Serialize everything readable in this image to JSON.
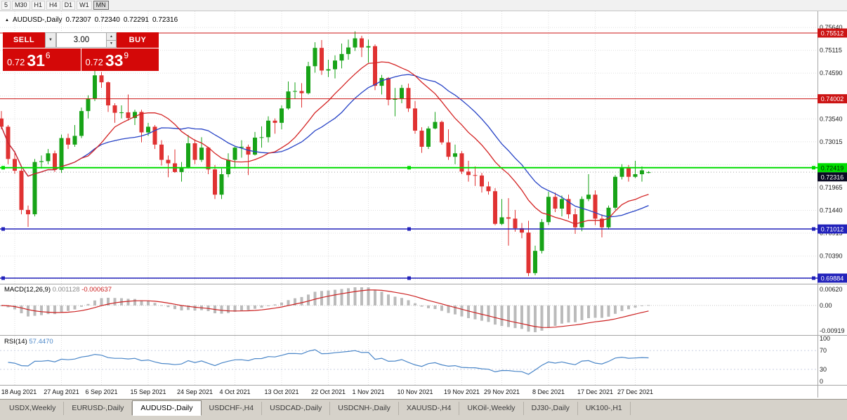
{
  "toolbar": {
    "timeframes": [
      {
        "label": "5",
        "active": false
      },
      {
        "label": "M30",
        "active": false
      },
      {
        "label": "H1",
        "active": false
      },
      {
        "label": "H4",
        "active": false
      },
      {
        "label": "D1",
        "active": false
      },
      {
        "label": "W1",
        "active": false
      },
      {
        "label": "MN",
        "active": true
      }
    ]
  },
  "chart_header": {
    "collapse_icon": "▲",
    "symbol": "AUDUSD-,Daily",
    "open": "0.72307",
    "high": "0.72340",
    "low": "0.72291",
    "close": "0.72316"
  },
  "trade_panel": {
    "sell_label": "SELL",
    "buy_label": "BUY",
    "volume": "3.00",
    "sell_price_prefix": "0.72",
    "sell_price_big": "31",
    "sell_price_sup": "6",
    "buy_price_prefix": "0.72",
    "buy_price_big": "33",
    "buy_price_sup": "9"
  },
  "price_axis": {
    "labels": [
      "0.75640",
      "0.75115",
      "0.74590",
      "0.73540",
      "0.73015",
      "0.71965",
      "0.71440",
      "0.70915",
      "0.70390"
    ],
    "grid_prices": [
      0.7564,
      0.75115,
      0.7459,
      0.74065,
      0.7354,
      0.73015,
      0.7249,
      0.71965,
      0.7144,
      0.70915,
      0.7039,
      0.69865
    ],
    "badges": [
      {
        "text": "0.75512",
        "price": 0.75512,
        "bg": "#cc1414",
        "fg": "#ffffff"
      },
      {
        "text": "0.74002",
        "price": 0.74002,
        "bg": "#cc1414",
        "fg": "#ffffff"
      },
      {
        "text": "0.72419",
        "price": 0.72419,
        "bg": "#00dd00",
        "fg": "#002200"
      },
      {
        "text": "0.72316",
        "price": 0.72316,
        "bg": "#0a0a23",
        "fg": "#ffffff"
      },
      {
        "text": "0.71012",
        "price": 0.71012,
        "bg": "#2222bb",
        "fg": "#ffffff"
      },
      {
        "text": "0.69884",
        "price": 0.69884,
        "bg": "#2222bb",
        "fg": "#ffffff"
      }
    ]
  },
  "hlines": [
    {
      "price": 0.75512,
      "color": "#cc1414",
      "width": 1,
      "handles": false
    },
    {
      "price": 0.74002,
      "color": "#cc1414",
      "width": 1,
      "handles": false
    },
    {
      "price": 0.72419,
      "color": "#00dd00",
      "width": 2,
      "handles": true
    },
    {
      "price": 0.71012,
      "color": "#2222bb",
      "width": 1.5,
      "handles": true
    },
    {
      "price": 0.69884,
      "color": "#2222bb",
      "width": 1.5,
      "handles": true
    }
  ],
  "bid_line": {
    "price": 0.72316,
    "color": "#a8a8a8"
  },
  "macd_panel": {
    "title": "MACD(12,26,9)",
    "main_value": "0.001128",
    "signal_value": "-0.000637",
    "axis_labels": [
      "0.00620",
      "0.00",
      "-0.00919"
    ],
    "histogram_color": "#bbbbbb",
    "signal_color": "#cc2020"
  },
  "rsi_panel": {
    "title": "RSI(14)",
    "value": "57.4470",
    "axis_labels": [
      "100",
      "70",
      "30",
      "0"
    ],
    "levels": [
      70,
      30
    ],
    "line_color": "#4a86c8"
  },
  "chart_data": {
    "type": "candlestick",
    "symbol": "AUDUSD-,Daily",
    "up_color": "#17a317",
    "down_color": "#e03232",
    "sma_fast": {
      "period": 13,
      "color": "#d42424"
    },
    "sma_slow": {
      "period": 20,
      "color": "#2743c6"
    },
    "y_axis_range": [
      0.6983,
      0.7601
    ],
    "x_labels": [
      "18 Aug 2021",
      "27 Aug 2021",
      "6 Sep 2021",
      "15 Sep 2021",
      "24 Sep 2021",
      "4 Oct 2021",
      "13 Oct 2021",
      "22 Oct 2021",
      "1 Nov 2021",
      "10 Nov 2021",
      "19 Nov 2021",
      "29 Nov 2021",
      "8 Dec 2021",
      "17 Dec 2021",
      "27 Dec 2021"
    ],
    "x_label_indices": [
      2,
      9,
      15,
      22,
      29,
      35,
      42,
      49,
      55,
      62,
      69,
      75,
      82,
      89,
      95
    ],
    "open": [
      0.7355,
      0.7336,
      0.7262,
      0.7235,
      0.7145,
      0.7135,
      0.7255,
      0.7257,
      0.7275,
      0.7237,
      0.731,
      0.7295,
      0.7315,
      0.7372,
      0.7401,
      0.7454,
      0.7438,
      0.7385,
      0.7368,
      0.7369,
      0.7356,
      0.737,
      0.7323,
      0.7336,
      0.7295,
      0.726,
      0.7252,
      0.7232,
      0.7243,
      0.7298,
      0.726,
      0.7288,
      0.7238,
      0.718,
      0.7227,
      0.726,
      0.7288,
      0.729,
      0.7272,
      0.7311,
      0.7312,
      0.735,
      0.7345,
      0.7378,
      0.7417,
      0.7418,
      0.7413,
      0.7475,
      0.7517,
      0.7465,
      0.7468,
      0.7488,
      0.7503,
      0.7518,
      0.7539,
      0.7518,
      0.7521,
      0.743,
      0.7448,
      0.7398,
      0.7401,
      0.7425,
      0.7378,
      0.7327,
      0.729,
      0.7332,
      0.7347,
      0.73,
      0.7267,
      0.7275,
      0.7233,
      0.7225,
      0.7224,
      0.7199,
      0.7188,
      0.7113,
      0.7128,
      0.7125,
      0.7103,
      0.7093,
      0.7,
      0.7051,
      0.7117,
      0.7175,
      0.7148,
      0.717,
      0.7135,
      0.7105,
      0.717,
      0.718,
      0.7125,
      0.7105,
      0.715,
      0.7221,
      0.7241,
      0.7221,
      0.7227,
      0.72307
    ],
    "high": [
      0.7372,
      0.734,
      0.728,
      0.7245,
      0.7155,
      0.7262,
      0.727,
      0.7285,
      0.7281,
      0.7318,
      0.732,
      0.734,
      0.738,
      0.7408,
      0.7478,
      0.7462,
      0.744,
      0.739,
      0.7385,
      0.741,
      0.7375,
      0.7375,
      0.7345,
      0.734,
      0.7305,
      0.727,
      0.7284,
      0.7255,
      0.7317,
      0.7307,
      0.7312,
      0.729,
      0.7248,
      0.724,
      0.7275,
      0.729,
      0.7305,
      0.7295,
      0.7324,
      0.7337,
      0.736,
      0.7355,
      0.7385,
      0.744,
      0.7438,
      0.7436,
      0.7485,
      0.753,
      0.7535,
      0.749,
      0.75,
      0.7527,
      0.7536,
      0.7555,
      0.7545,
      0.7536,
      0.7525,
      0.7455,
      0.745,
      0.7425,
      0.7432,
      0.7435,
      0.7395,
      0.7335,
      0.7337,
      0.737,
      0.735,
      0.733,
      0.7295,
      0.728,
      0.7258,
      0.7245,
      0.723,
      0.721,
      0.7195,
      0.717,
      0.7172,
      0.7145,
      0.7115,
      0.712,
      0.7063,
      0.7124,
      0.7187,
      0.7185,
      0.7178,
      0.718,
      0.7148,
      0.7176,
      0.7227,
      0.719,
      0.7135,
      0.7155,
      0.7225,
      0.725,
      0.7248,
      0.7258,
      0.7245,
      0.7234
    ],
    "low": [
      0.733,
      0.725,
      0.7228,
      0.7135,
      0.7106,
      0.713,
      0.724,
      0.725,
      0.7232,
      0.723,
      0.7285,
      0.729,
      0.731,
      0.7355,
      0.7395,
      0.7425,
      0.737,
      0.7345,
      0.7355,
      0.735,
      0.734,
      0.73,
      0.7315,
      0.7285,
      0.7247,
      0.722,
      0.723,
      0.721,
      0.724,
      0.725,
      0.7255,
      0.7227,
      0.717,
      0.717,
      0.722,
      0.724,
      0.7265,
      0.7225,
      0.727,
      0.7288,
      0.73,
      0.732,
      0.733,
      0.7375,
      0.74,
      0.738,
      0.741,
      0.746,
      0.7455,
      0.745,
      0.7447,
      0.747,
      0.749,
      0.751,
      0.7496,
      0.7483,
      0.742,
      0.741,
      0.7385,
      0.736,
      0.739,
      0.737,
      0.732,
      0.7276,
      0.7285,
      0.733,
      0.7295,
      0.726,
      0.725,
      0.7227,
      0.721,
      0.72,
      0.7185,
      0.718,
      0.711,
      0.711,
      0.7063,
      0.7095,
      0.708,
      0.6993,
      0.6995,
      0.7045,
      0.711,
      0.714,
      0.713,
      0.7125,
      0.709,
      0.7096,
      0.7165,
      0.711,
      0.7082,
      0.71,
      0.7145,
      0.7215,
      0.721,
      0.7218,
      0.721,
      0.72291
    ],
    "close": [
      0.7336,
      0.7262,
      0.7235,
      0.7145,
      0.7135,
      0.7255,
      0.7257,
      0.7275,
      0.7237,
      0.731,
      0.7295,
      0.7315,
      0.7372,
      0.7401,
      0.7454,
      0.7438,
      0.7385,
      0.7368,
      0.7369,
      0.7356,
      0.737,
      0.7323,
      0.7336,
      0.7295,
      0.726,
      0.7252,
      0.7232,
      0.7243,
      0.7298,
      0.726,
      0.7288,
      0.7238,
      0.718,
      0.7227,
      0.726,
      0.7288,
      0.729,
      0.7272,
      0.7311,
      0.7312,
      0.735,
      0.7345,
      0.7378,
      0.7417,
      0.7418,
      0.7413,
      0.7475,
      0.7517,
      0.7465,
      0.7468,
      0.7488,
      0.7503,
      0.7518,
      0.7539,
      0.7518,
      0.7521,
      0.743,
      0.7448,
      0.7398,
      0.7401,
      0.7425,
      0.7378,
      0.7327,
      0.729,
      0.7332,
      0.7347,
      0.73,
      0.7267,
      0.7275,
      0.7233,
      0.7225,
      0.7224,
      0.7199,
      0.7188,
      0.7113,
      0.7128,
      0.7125,
      0.7103,
      0.7093,
      0.7,
      0.7051,
      0.7117,
      0.7175,
      0.7148,
      0.717,
      0.7135,
      0.7105,
      0.717,
      0.718,
      0.7125,
      0.7105,
      0.715,
      0.7221,
      0.7241,
      0.7221,
      0.7227,
      0.7236,
      0.72316
    ]
  },
  "tabs": [
    {
      "label": "USDX,Weekly",
      "active": false
    },
    {
      "label": "EURUSD-,Daily",
      "active": false
    },
    {
      "label": "AUDUSD-,Daily",
      "active": true
    },
    {
      "label": "USDCHF-,H4",
      "active": false
    },
    {
      "label": "USDCAD-,Daily",
      "active": false
    },
    {
      "label": "USDCNH-,Daily",
      "active": false
    },
    {
      "label": "XAUUSD-,H4",
      "active": false
    },
    {
      "label": "UKOil-,Weekly",
      "active": false
    },
    {
      "label": "DJ30-,Daily",
      "active": false
    },
    {
      "label": "UK100-,H1",
      "active": false
    }
  ]
}
